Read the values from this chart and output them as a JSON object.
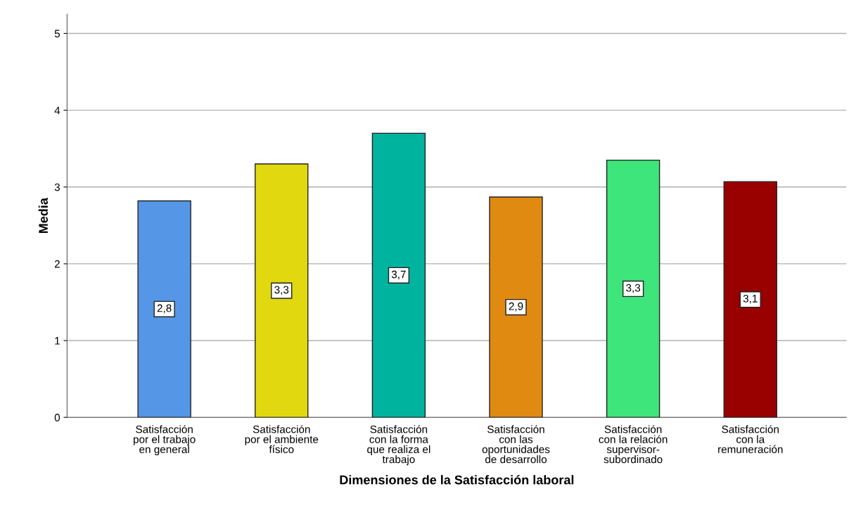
{
  "chart_data": {
    "type": "bar",
    "xlabel": "Dimensiones de la Satisfacción laboral",
    "ylabel": "Media",
    "categories": [
      "Satisfacción\npor el trabajo\nen general",
      "Satisfacción\npor el ambiente\nfísico",
      "Satisfacción\ncon la forma\nque realiza el\ntrabajo",
      "Satisfacción\ncon las\noportunidades\nde desarrollo",
      "Satisfacción\ncon la relación\nsupervisor-\nsubordinado",
      "Satisfacción\ncon la\nremuneración"
    ],
    "values": [
      2.82,
      3.3,
      3.7,
      2.87,
      3.35,
      3.07
    ],
    "value_labels": [
      "2,8",
      "3,3",
      "3,7",
      "2,9",
      "3,3",
      "3,1"
    ],
    "colors": [
      "#5596e6",
      "#e1d80f",
      "#00b39f",
      "#e08a12",
      "#3de57a",
      "#990000"
    ],
    "ylim": [
      0,
      5.25
    ],
    "yticks": [
      0,
      1,
      2,
      3,
      4,
      5
    ],
    "grid": "y",
    "legend": false
  }
}
